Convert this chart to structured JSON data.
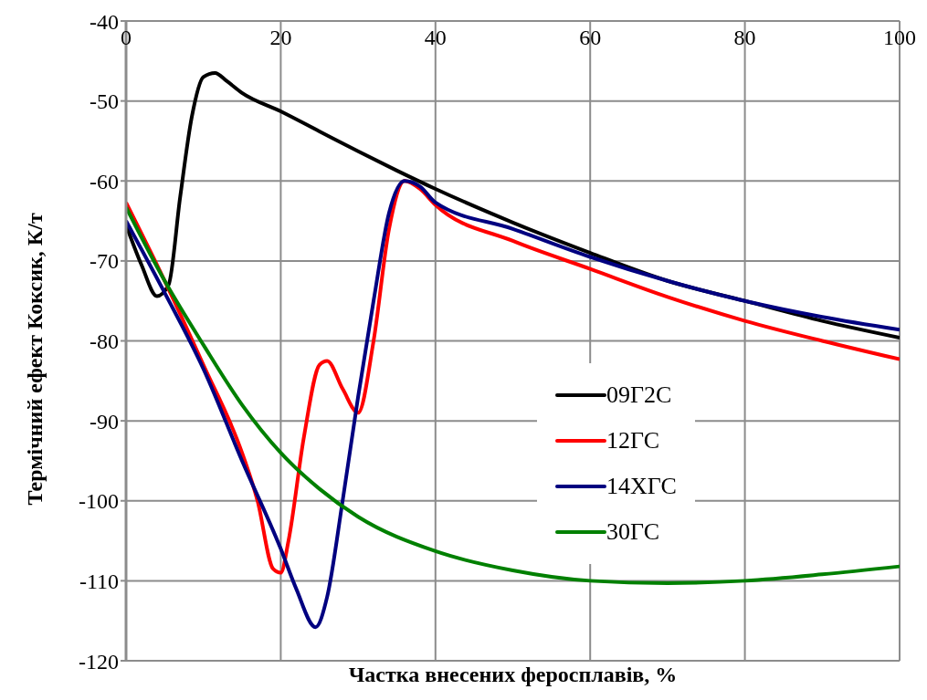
{
  "chart_data": {
    "type": "line",
    "xlabel": "Частка внесених феросплавів, %",
    "ylabel": "Термічний ефект Коксик, К/т",
    "xlim": [
      0,
      100
    ],
    "xticks": [
      0,
      20,
      40,
      60,
      80,
      100
    ],
    "ylim": [
      -120,
      -40
    ],
    "yticks": [
      -120,
      -110,
      -100,
      -90,
      -80,
      -70,
      -60,
      -50,
      -40
    ],
    "grid": true,
    "legend": "right",
    "line_style": "solid",
    "marker": "none",
    "series": [
      {
        "name": "09Г2С",
        "color": "#000000",
        "x": [
          0,
          2,
          4,
          5.5,
          7,
          8.5,
          10,
          11.5,
          13,
          15,
          20,
          25,
          30,
          35,
          40,
          50,
          60,
          70,
          80,
          90,
          100
        ],
        "values": [
          -65.5,
          -70.5,
          -74.4,
          -73,
          -62,
          -52,
          -47,
          -46.5,
          -47.5,
          -49,
          -51.3,
          -53.8,
          -56.3,
          -58.7,
          -61,
          -65.2,
          -69,
          -72.5,
          -75,
          -77.5,
          -79.6
        ]
      },
      {
        "name": "12ГС",
        "color": "#ff0000",
        "x": [
          0,
          5,
          10,
          15,
          17,
          19,
          20,
          21,
          23,
          25,
          26,
          28,
          30,
          32,
          34,
          36,
          38,
          40,
          50,
          60,
          70,
          80,
          90,
          100
        ],
        "values": [
          -62.7,
          -72.5,
          -83,
          -94,
          -100,
          -108.5,
          -109,
          -105,
          -92,
          -83,
          -82.5,
          -86,
          -89,
          -80,
          -66,
          -60,
          -61,
          -63,
          -67.5,
          -71,
          -74.5,
          -77.5,
          -80,
          -82.3
        ]
      },
      {
        "name": "14ХГС",
        "color": "#000080",
        "x": [
          0,
          5,
          10,
          15,
          20,
          22,
          24.5,
          26,
          28,
          30,
          32,
          34,
          36,
          38,
          40,
          50,
          60,
          70,
          80,
          90,
          100
        ],
        "values": [
          -65,
          -74,
          -83.5,
          -95,
          -106,
          -111,
          -115.8,
          -112,
          -100,
          -87,
          -75,
          -64,
          -60,
          -60.7,
          -62.7,
          -66,
          -69.5,
          -72.5,
          -75,
          -77,
          -78.6
        ]
      },
      {
        "name": "30ГС",
        "color": "#008000",
        "x": [
          0,
          5,
          10,
          15,
          20,
          25,
          30,
          40,
          50,
          60,
          70,
          80,
          90,
          100
        ],
        "values": [
          -63.3,
          -72.5,
          -80.5,
          -88,
          -94,
          -98.5,
          -102,
          -106.3,
          -108.7,
          -110,
          -110.3,
          -110,
          -109.2,
          -108.2
        ]
      }
    ]
  }
}
